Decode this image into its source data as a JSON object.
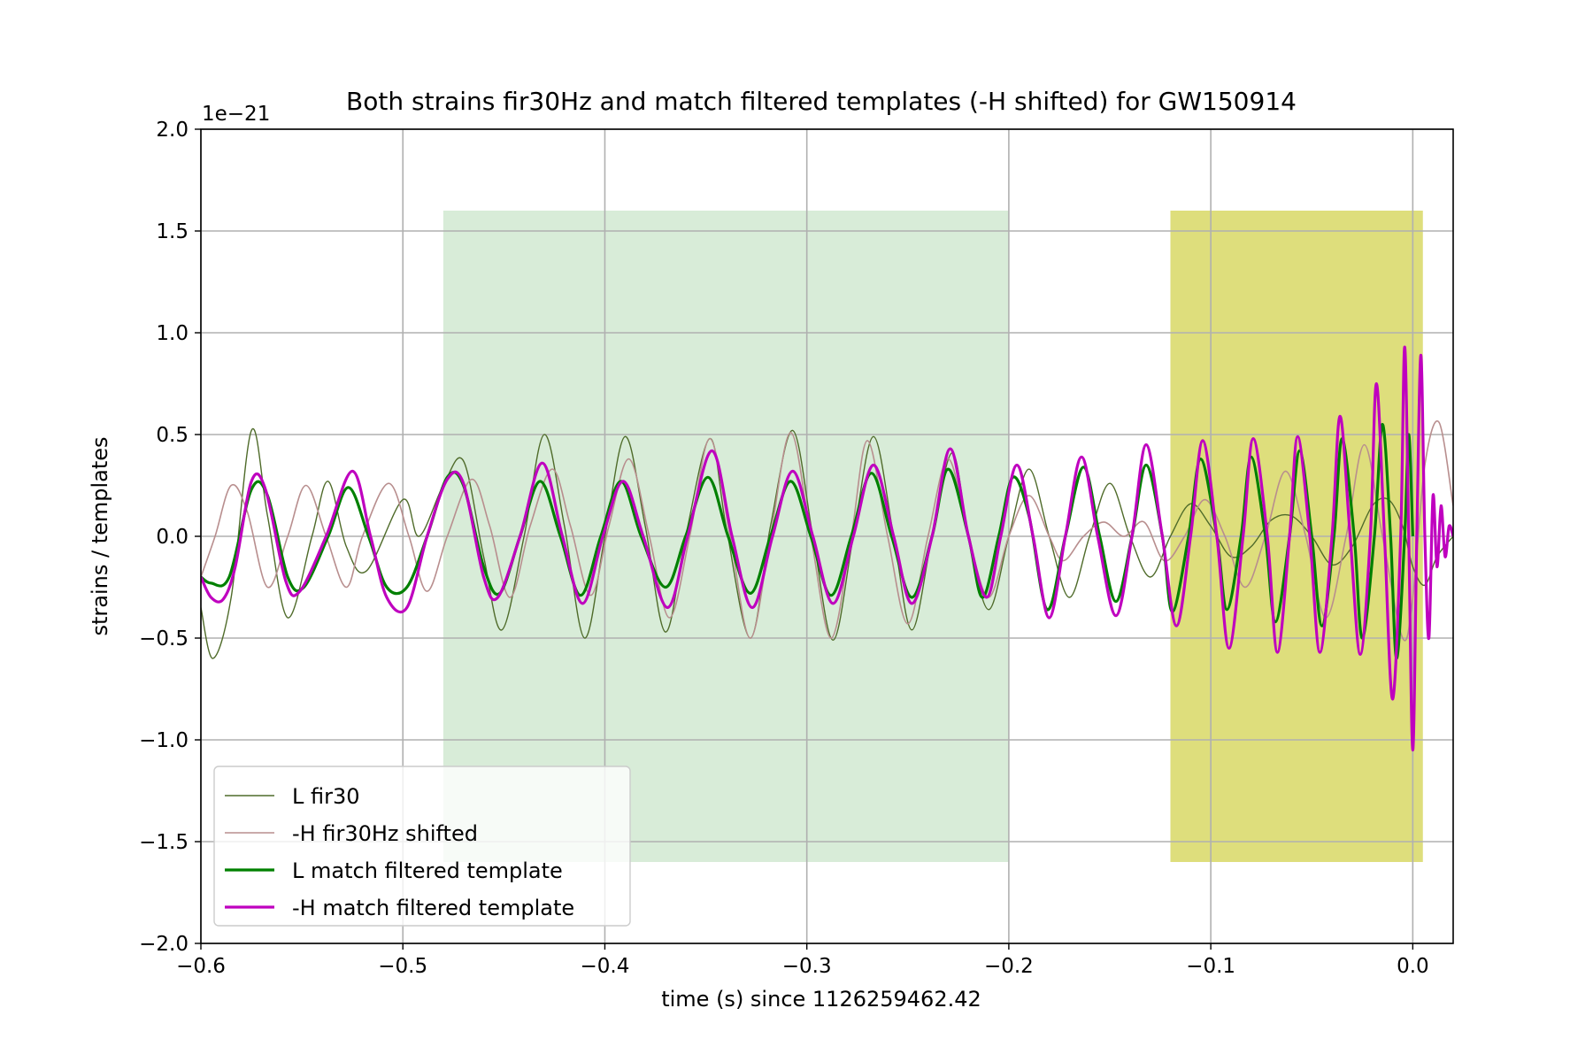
{
  "chart_data": {
    "type": "line",
    "title": "Both strains fir30Hz and match filtered templates (-H shifted) for GW150914",
    "xlabel": "time (s) since 1126259462.42",
    "ylabel": "strains / templates",
    "y_scale_label": "1e−21",
    "xlim": [
      -0.6,
      0.02
    ],
    "ylim": [
      -2.0,
      2.0
    ],
    "x_ticks": [
      -0.6,
      -0.5,
      -0.4,
      -0.3,
      -0.2,
      -0.1,
      0.0
    ],
    "x_tick_labels": [
      "−0.6",
      "−0.5",
      "−0.4",
      "−0.3",
      "−0.2",
      "−0.1",
      "0.0"
    ],
    "y_ticks": [
      -2.0,
      -1.5,
      -1.0,
      -0.5,
      0.0,
      0.5,
      1.0,
      1.5,
      2.0
    ],
    "y_tick_labels": [
      "−2.0",
      "−1.5",
      "−1.0",
      "−0.5",
      "0.0",
      "0.5",
      "1.0",
      "1.5",
      "2.0"
    ],
    "grid": true,
    "legend_position": "lower-left",
    "shaded_regions": [
      {
        "x0": -0.48,
        "x1": -0.2,
        "y0": -1.6,
        "y1": 1.6,
        "color": "#d8ecd8"
      },
      {
        "x0": -0.12,
        "x1": 0.005,
        "y0": -1.6,
        "y1": 1.6,
        "color": "#dede7c"
      }
    ],
    "series": [
      {
        "name": "L fir30",
        "color": "#4f6b2a",
        "width": 1.4,
        "points": [
          [
            -0.6,
            -0.35
          ],
          [
            -0.594,
            -0.6
          ],
          [
            -0.585,
            -0.3
          ],
          [
            -0.575,
            0.52
          ],
          [
            -0.567,
            0.1
          ],
          [
            -0.557,
            -0.4
          ],
          [
            -0.545,
            0.0
          ],
          [
            -0.537,
            0.27
          ],
          [
            -0.528,
            -0.05
          ],
          [
            -0.518,
            -0.17
          ],
          [
            -0.5,
            0.18
          ],
          [
            -0.492,
            0.0
          ],
          [
            -0.48,
            0.25
          ],
          [
            -0.47,
            0.37
          ],
          [
            -0.46,
            -0.1
          ],
          [
            -0.451,
            -0.46
          ],
          [
            -0.44,
            0.0
          ],
          [
            -0.43,
            0.5
          ],
          [
            -0.42,
            0.05
          ],
          [
            -0.41,
            -0.5
          ],
          [
            -0.4,
            0.0
          ],
          [
            -0.39,
            0.49
          ],
          [
            -0.38,
            0.05
          ],
          [
            -0.37,
            -0.47
          ],
          [
            -0.36,
            0.0
          ],
          [
            -0.348,
            0.48
          ],
          [
            -0.34,
            0.05
          ],
          [
            -0.328,
            -0.5
          ],
          [
            -0.318,
            0.05
          ],
          [
            -0.307,
            0.52
          ],
          [
            -0.297,
            0.0
          ],
          [
            -0.287,
            -0.51
          ],
          [
            -0.277,
            0.0
          ],
          [
            -0.267,
            0.49
          ],
          [
            -0.257,
            0.0
          ],
          [
            -0.248,
            -0.46
          ],
          [
            -0.238,
            0.0
          ],
          [
            -0.228,
            0.41
          ],
          [
            -0.22,
            0.0
          ],
          [
            -0.21,
            -0.36
          ],
          [
            -0.2,
            0.0
          ],
          [
            -0.19,
            0.33
          ],
          [
            -0.18,
            0.0
          ],
          [
            -0.17,
            -0.3
          ],
          [
            -0.16,
            0.0
          ],
          [
            -0.15,
            0.26
          ],
          [
            -0.14,
            0.0
          ],
          [
            -0.13,
            -0.2
          ],
          [
            -0.12,
            0.0
          ],
          [
            -0.11,
            0.16
          ],
          [
            -0.1,
            0.05
          ],
          [
            -0.09,
            -0.1
          ],
          [
            -0.08,
            -0.05
          ],
          [
            -0.07,
            0.08
          ],
          [
            -0.06,
            0.1
          ],
          [
            -0.05,
            0.0
          ],
          [
            -0.04,
            -0.14
          ],
          [
            -0.03,
            -0.05
          ],
          [
            -0.02,
            0.15
          ],
          [
            -0.012,
            0.18
          ],
          [
            -0.005,
            0.05
          ],
          [
            0.0,
            -0.15
          ],
          [
            0.006,
            -0.24
          ],
          [
            0.012,
            -0.1
          ],
          [
            0.02,
            0.0
          ]
        ]
      },
      {
        "name": "-H fir30Hz shifted",
        "color": "#b88e8e",
        "width": 1.6,
        "points": [
          [
            -0.6,
            -0.2
          ],
          [
            -0.593,
            0.0
          ],
          [
            -0.585,
            0.25
          ],
          [
            -0.577,
            0.12
          ],
          [
            -0.567,
            -0.25
          ],
          [
            -0.557,
            0.0
          ],
          [
            -0.548,
            0.25
          ],
          [
            -0.538,
            0.0
          ],
          [
            -0.528,
            -0.25
          ],
          [
            -0.52,
            0.0
          ],
          [
            -0.507,
            0.26
          ],
          [
            -0.497,
            0.0
          ],
          [
            -0.488,
            -0.27
          ],
          [
            -0.478,
            0.0
          ],
          [
            -0.466,
            0.28
          ],
          [
            -0.457,
            0.05
          ],
          [
            -0.447,
            -0.3
          ],
          [
            -0.437,
            0.05
          ],
          [
            -0.426,
            0.33
          ],
          [
            -0.417,
            0.05
          ],
          [
            -0.407,
            -0.29
          ],
          [
            -0.398,
            0.05
          ],
          [
            -0.388,
            0.38
          ],
          [
            -0.378,
            0.0
          ],
          [
            -0.368,
            -0.4
          ],
          [
            -0.358,
            0.0
          ],
          [
            -0.348,
            0.48
          ],
          [
            -0.338,
            0.0
          ],
          [
            -0.328,
            -0.5
          ],
          [
            -0.318,
            0.0
          ],
          [
            -0.308,
            0.51
          ],
          [
            -0.298,
            0.0
          ],
          [
            -0.288,
            -0.5
          ],
          [
            -0.278,
            0.0
          ],
          [
            -0.27,
            0.47
          ],
          [
            -0.26,
            0.0
          ],
          [
            -0.25,
            -0.43
          ],
          [
            -0.24,
            0.0
          ],
          [
            -0.23,
            0.38
          ],
          [
            -0.22,
            0.0
          ],
          [
            -0.21,
            -0.3
          ],
          [
            -0.2,
            0.0
          ],
          [
            -0.19,
            0.2
          ],
          [
            -0.18,
            0.0
          ],
          [
            -0.173,
            -0.12
          ],
          [
            -0.163,
            0.0
          ],
          [
            -0.153,
            0.07
          ],
          [
            -0.143,
            0.0
          ],
          [
            -0.133,
            0.07
          ],
          [
            -0.123,
            -0.12
          ],
          [
            -0.113,
            0.0
          ],
          [
            -0.103,
            0.18
          ],
          [
            -0.093,
            0.0
          ],
          [
            -0.083,
            -0.25
          ],
          [
            -0.073,
            0.0
          ],
          [
            -0.063,
            0.32
          ],
          [
            -0.053,
            0.0
          ],
          [
            -0.043,
            -0.4
          ],
          [
            -0.033,
            0.0
          ],
          [
            -0.024,
            0.45
          ],
          [
            -0.015,
            0.0
          ],
          [
            -0.005,
            -0.5
          ],
          [
            0.0,
            -0.3
          ],
          [
            0.006,
            0.35
          ],
          [
            0.013,
            0.56
          ],
          [
            0.02,
            0.15
          ]
        ]
      },
      {
        "name": "L match filtered template",
        "color": "#008000",
        "width": 3.2,
        "points": [
          [
            -0.6,
            -0.2
          ],
          [
            -0.595,
            -0.23
          ],
          [
            -0.586,
            -0.2
          ],
          [
            -0.575,
            0.23
          ],
          [
            -0.567,
            0.2
          ],
          [
            -0.557,
            -0.2
          ],
          [
            -0.549,
            -0.25
          ],
          [
            -0.537,
            0.0
          ],
          [
            -0.527,
            0.24
          ],
          [
            -0.517,
            0.0
          ],
          [
            -0.508,
            -0.25
          ],
          [
            -0.498,
            -0.25
          ],
          [
            -0.488,
            0.0
          ],
          [
            -0.478,
            0.29
          ],
          [
            -0.47,
            0.25
          ],
          [
            -0.46,
            -0.15
          ],
          [
            -0.452,
            -0.28
          ],
          [
            -0.442,
            0.0
          ],
          [
            -0.432,
            0.27
          ],
          [
            -0.422,
            0.0
          ],
          [
            -0.412,
            -0.29
          ],
          [
            -0.402,
            0.0
          ],
          [
            -0.392,
            0.27
          ],
          [
            -0.382,
            0.0
          ],
          [
            -0.37,
            -0.25
          ],
          [
            -0.36,
            0.0
          ],
          [
            -0.349,
            0.29
          ],
          [
            -0.339,
            0.0
          ],
          [
            -0.328,
            -0.28
          ],
          [
            -0.318,
            0.0
          ],
          [
            -0.308,
            0.27
          ],
          [
            -0.298,
            0.0
          ],
          [
            -0.288,
            -0.29
          ],
          [
            -0.278,
            0.0
          ],
          [
            -0.268,
            0.31
          ],
          [
            -0.258,
            0.0
          ],
          [
            -0.248,
            -0.3
          ],
          [
            -0.238,
            0.0
          ],
          [
            -0.23,
            0.33
          ],
          [
            -0.22,
            0.0
          ],
          [
            -0.213,
            -0.3
          ],
          [
            -0.205,
            0.0
          ],
          [
            -0.198,
            0.29
          ],
          [
            -0.19,
            0.1
          ],
          [
            -0.181,
            -0.36
          ],
          [
            -0.172,
            0.0
          ],
          [
            -0.163,
            0.34
          ],
          [
            -0.155,
            0.0
          ],
          [
            -0.147,
            -0.32
          ],
          [
            -0.139,
            0.0
          ],
          [
            -0.132,
            0.35
          ],
          [
            -0.124,
            0.0
          ],
          [
            -0.119,
            -0.37
          ],
          [
            -0.111,
            0.0
          ],
          [
            -0.105,
            0.38
          ],
          [
            -0.097,
            0.0
          ],
          [
            -0.092,
            -0.36
          ],
          [
            -0.085,
            0.0
          ],
          [
            -0.08,
            0.39
          ],
          [
            -0.073,
            0.0
          ],
          [
            -0.068,
            -0.42
          ],
          [
            -0.061,
            0.0
          ],
          [
            -0.056,
            0.42
          ],
          [
            -0.05,
            0.0
          ],
          [
            -0.045,
            -0.44
          ],
          [
            -0.039,
            0.0
          ],
          [
            -0.035,
            0.48
          ],
          [
            -0.029,
            0.0
          ],
          [
            -0.025,
            -0.5
          ],
          [
            -0.019,
            0.0
          ],
          [
            -0.015,
            0.55
          ],
          [
            -0.011,
            0.0
          ],
          [
            -0.008,
            -0.6
          ],
          [
            -0.004,
            0.0
          ],
          [
            -0.002,
            0.5
          ],
          [
            0.0,
            0.0
          ]
        ]
      },
      {
        "name": "-H match filtered template",
        "color": "#bf00bf",
        "width": 3.2,
        "points": [
          [
            -0.6,
            -0.2
          ],
          [
            -0.595,
            -0.3
          ],
          [
            -0.589,
            -0.31
          ],
          [
            -0.583,
            -0.15
          ],
          [
            -0.575,
            0.27
          ],
          [
            -0.568,
            0.23
          ],
          [
            -0.558,
            -0.22
          ],
          [
            -0.551,
            -0.27
          ],
          [
            -0.538,
            0.0
          ],
          [
            -0.525,
            0.32
          ],
          [
            -0.516,
            0.0
          ],
          [
            -0.508,
            -0.3
          ],
          [
            -0.498,
            -0.35
          ],
          [
            -0.488,
            0.0
          ],
          [
            -0.478,
            0.28
          ],
          [
            -0.47,
            0.26
          ],
          [
            -0.46,
            -0.2
          ],
          [
            -0.453,
            -0.3
          ],
          [
            -0.442,
            0.0
          ],
          [
            -0.431,
            0.36
          ],
          [
            -0.421,
            0.0
          ],
          [
            -0.411,
            -0.33
          ],
          [
            -0.401,
            0.0
          ],
          [
            -0.391,
            0.27
          ],
          [
            -0.381,
            0.0
          ],
          [
            -0.369,
            -0.35
          ],
          [
            -0.359,
            0.0
          ],
          [
            -0.347,
            0.42
          ],
          [
            -0.337,
            0.0
          ],
          [
            -0.327,
            -0.35
          ],
          [
            -0.317,
            0.0
          ],
          [
            -0.307,
            0.32
          ],
          [
            -0.297,
            0.0
          ],
          [
            -0.287,
            -0.33
          ],
          [
            -0.277,
            0.0
          ],
          [
            -0.267,
            0.35
          ],
          [
            -0.257,
            0.0
          ],
          [
            -0.248,
            -0.33
          ],
          [
            -0.238,
            0.0
          ],
          [
            -0.229,
            0.43
          ],
          [
            -0.22,
            0.0
          ],
          [
            -0.211,
            -0.3
          ],
          [
            -0.204,
            0.0
          ],
          [
            -0.196,
            0.35
          ],
          [
            -0.188,
            0.0
          ],
          [
            -0.18,
            -0.4
          ],
          [
            -0.172,
            0.0
          ],
          [
            -0.164,
            0.39
          ],
          [
            -0.156,
            0.0
          ],
          [
            -0.147,
            -0.39
          ],
          [
            -0.139,
            0.0
          ],
          [
            -0.132,
            0.45
          ],
          [
            -0.124,
            0.0
          ],
          [
            -0.117,
            -0.44
          ],
          [
            -0.11,
            0.0
          ],
          [
            -0.104,
            0.47
          ],
          [
            -0.097,
            0.0
          ],
          [
            -0.091,
            -0.55
          ],
          [
            -0.084,
            0.0
          ],
          [
            -0.079,
            0.48
          ],
          [
            -0.072,
            0.0
          ],
          [
            -0.067,
            -0.57
          ],
          [
            -0.061,
            0.0
          ],
          [
            -0.057,
            0.49
          ],
          [
            -0.051,
            0.0
          ],
          [
            -0.046,
            -0.57
          ],
          [
            -0.04,
            0.0
          ],
          [
            -0.036,
            0.59
          ],
          [
            -0.031,
            0.0
          ],
          [
            -0.026,
            -0.58
          ],
          [
            -0.021,
            0.0
          ],
          [
            -0.018,
            0.75
          ],
          [
            -0.014,
            0.0
          ],
          [
            -0.01,
            -0.8
          ],
          [
            -0.006,
            0.0
          ],
          [
            -0.004,
            0.93
          ],
          [
            -0.002,
            0.0
          ],
          [
            0.0,
            -1.05
          ],
          [
            0.002,
            0.0
          ],
          [
            0.004,
            0.89
          ],
          [
            0.006,
            0.0
          ],
          [
            0.008,
            -0.5
          ],
          [
            0.01,
            0.2
          ],
          [
            0.012,
            -0.15
          ],
          [
            0.014,
            0.15
          ],
          [
            0.016,
            -0.1
          ],
          [
            0.018,
            0.05
          ],
          [
            0.02,
            0.0
          ]
        ]
      }
    ]
  }
}
